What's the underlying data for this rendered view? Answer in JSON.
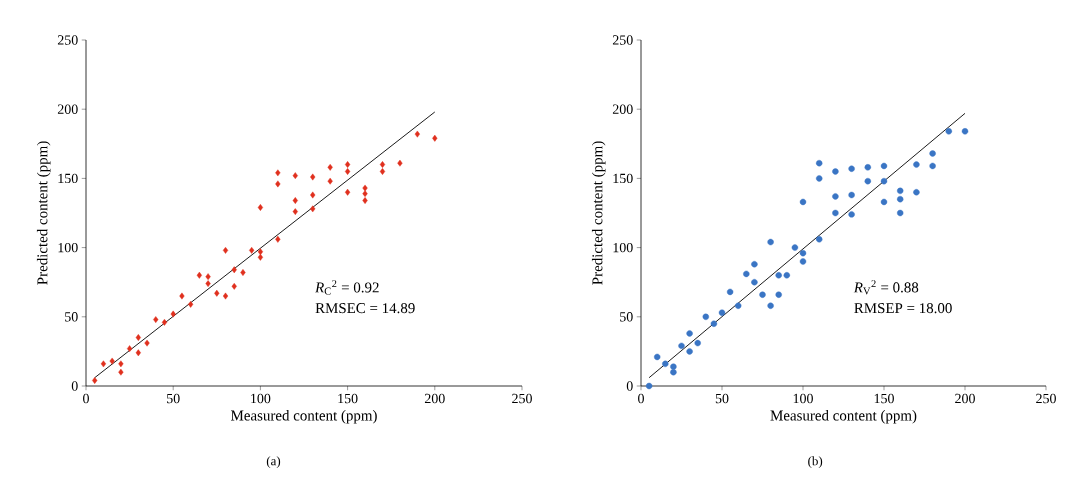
{
  "chart_data": [
    {
      "type": "scatter",
      "title": "(a)",
      "xlabel": "Measured content (ppm)",
      "ylabel": "Predicted content (ppm)",
      "xlim": [
        0,
        250
      ],
      "ylim": [
        0,
        250
      ],
      "xticks": [
        0,
        50,
        100,
        150,
        200,
        250
      ],
      "yticks": [
        0,
        50,
        100,
        150,
        200,
        250
      ],
      "annotations": [
        "*R*$_{C}$$^{2}$ = 0.92",
        "RMSEC = 14.89"
      ],
      "series": [
        {
          "type": "scatter",
          "color": "#e0301e",
          "marker": "diamond",
          "x": [
            5,
            10,
            15,
            20,
            20,
            25,
            30,
            30,
            35,
            40,
            45,
            50,
            55,
            60,
            65,
            70,
            70,
            75,
            80,
            80,
            85,
            85,
            90,
            95,
            100,
            100,
            100,
            110,
            110,
            110,
            120,
            120,
            120,
            130,
            130,
            130,
            140,
            140,
            150,
            150,
            150,
            160,
            160,
            160,
            170,
            170,
            180,
            190,
            200
          ],
          "values": [
            4,
            16,
            18,
            16,
            10,
            27,
            35,
            24,
            31,
            48,
            46,
            52,
            65,
            59,
            80,
            79,
            74,
            67,
            98,
            65,
            84,
            72,
            82,
            98,
            97,
            93,
            129,
            154,
            146,
            106,
            152,
            134,
            126,
            151,
            138,
            128,
            158,
            148,
            160,
            155,
            140,
            143,
            139,
            134,
            160,
            155,
            161,
            182,
            179
          ]
        },
        {
          "type": "line",
          "color": "#000000",
          "x": [
            5,
            200
          ],
          "values": [
            6,
            198
          ]
        }
      ]
    },
    {
      "type": "scatter",
      "title": "(b)",
      "xlabel": "Measured content (ppm)",
      "ylabel": "Predicted content (ppm)",
      "xlim": [
        0,
        250
      ],
      "ylim": [
        0,
        250
      ],
      "xticks": [
        0,
        50,
        100,
        150,
        200,
        250
      ],
      "yticks": [
        0,
        50,
        100,
        150,
        200,
        250
      ],
      "annotations": [
        "*R*$_{V}$$^{2}$ = 0.88",
        "RMSEP = 18.00"
      ],
      "series": [
        {
          "type": "scatter",
          "color": "#3a75c4",
          "marker": "circle",
          "x": [
            5,
            10,
            15,
            20,
            20,
            25,
            30,
            30,
            35,
            40,
            45,
            50,
            55,
            60,
            65,
            70,
            70,
            75,
            80,
            80,
            85,
            85,
            90,
            95,
            100,
            100,
            100,
            110,
            110,
            110,
            120,
            120,
            120,
            130,
            130,
            130,
            140,
            140,
            150,
            150,
            150,
            160,
            160,
            160,
            170,
            170,
            180,
            180,
            190,
            200
          ],
          "values": [
            0,
            21,
            16,
            14,
            10,
            29,
            38,
            25,
            31,
            50,
            45,
            53,
            68,
            58,
            81,
            88,
            75,
            66,
            104,
            58,
            80,
            66,
            80,
            100,
            96,
            90,
            133,
            161,
            150,
            106,
            155,
            137,
            125,
            157,
            138,
            124,
            158,
            148,
            159,
            148,
            133,
            141,
            135,
            125,
            160,
            140,
            168,
            159,
            184,
            184
          ]
        },
        {
          "type": "line",
          "color": "#000000",
          "x": [
            5,
            200
          ],
          "values": [
            6,
            197
          ]
        }
      ]
    }
  ]
}
